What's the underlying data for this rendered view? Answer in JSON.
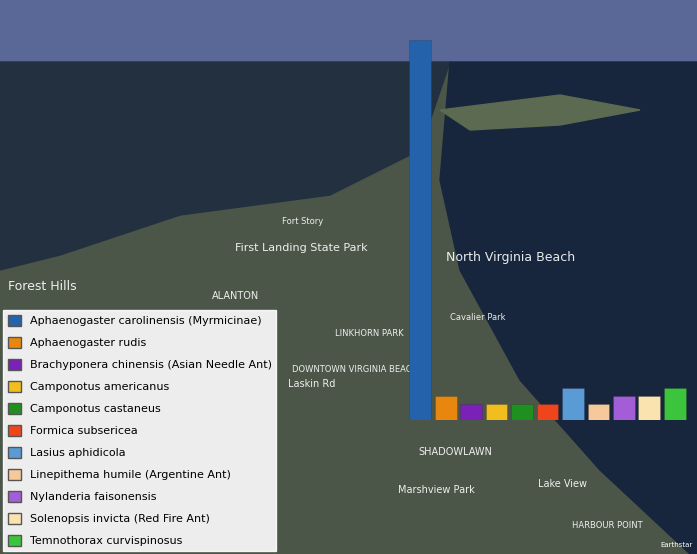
{
  "chart_data": {
    "type": "bar",
    "categories": [
      "Aphaenogaster carolinensis (Myrmicinae)",
      "Aphaenogaster rudis",
      "Brachyponera chinensis (Asian Needle Ant)",
      "Camponotus americanus",
      "Camponotus castaneus",
      "Formica subsericea",
      "Lasius aphidicola",
      "Linepithema humile (Argentine Ant)",
      "Nylanderia faisonensis",
      "Solenopsis invicta (Red Fire Ant)",
      "Temnothorax curvispinosus"
    ],
    "values": [
      48,
      3,
      2,
      2,
      2,
      2,
      4,
      2,
      3,
      3,
      4
    ],
    "colors": [
      "#2463ac",
      "#e8870e",
      "#7a22b8",
      "#f2be1e",
      "#1f8f1f",
      "#f0441c",
      "#5b9bd5",
      "#f5c99a",
      "#a35dd6",
      "#fbe3b0",
      "#3cc43c"
    ],
    "legend": "lower left",
    "tick_labels": false
  },
  "map": {
    "labels": [
      "Fort Story",
      "First Landing State Park",
      "North Virginia Beach",
      "Forest Hills",
      "ALANTON",
      "Cavalier Park",
      "LINKHORN PARK",
      "DOWNTOWN VIRGINIA BEACH",
      "Laskin Rd",
      "SHADOWLAWN",
      "Lake View",
      "Marshview Park",
      "HARBOUR POINT"
    ],
    "attribution": "Earthstar"
  }
}
